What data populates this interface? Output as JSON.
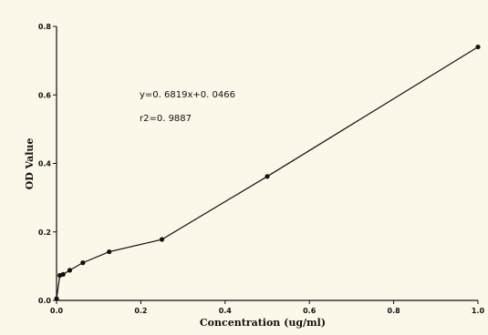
{
  "chart_data": {
    "type": "line",
    "title": "",
    "xlabel": "Concentration (ug/ml)",
    "ylabel": "OD Value",
    "xlim": [
      0,
      1.0
    ],
    "ylim": [
      0,
      0.8
    ],
    "xticks": [
      "0.0",
      "0.2",
      "0.4",
      "0.6",
      "0.8",
      "1.0"
    ],
    "yticks": [
      "0.0",
      "0.2",
      "0.4",
      "0.6",
      "0.8"
    ],
    "grid": false,
    "legend": "none",
    "series": [
      {
        "points": [
          {
            "x": 0,
            "y": 0.005
          },
          {
            "x": 0.0078,
            "y": 0.073
          },
          {
            "x": 0.0156,
            "y": 0.076
          },
          {
            "x": 0.03125,
            "y": 0.088
          },
          {
            "x": 0.0625,
            "y": 0.11
          },
          {
            "x": 0.125,
            "y": 0.142
          },
          {
            "x": 0.25,
            "y": 0.178
          },
          {
            "x": 0.5,
            "y": 0.362
          },
          {
            "x": 1.0,
            "y": 0.74
          }
        ],
        "color": "#111111"
      }
    ],
    "annotations": [
      "y=0. 6819x+0. 0466",
      "r2=0. 9887"
    ]
  },
  "colors": {
    "background": "#fbf7e9",
    "ink": "#111111"
  }
}
